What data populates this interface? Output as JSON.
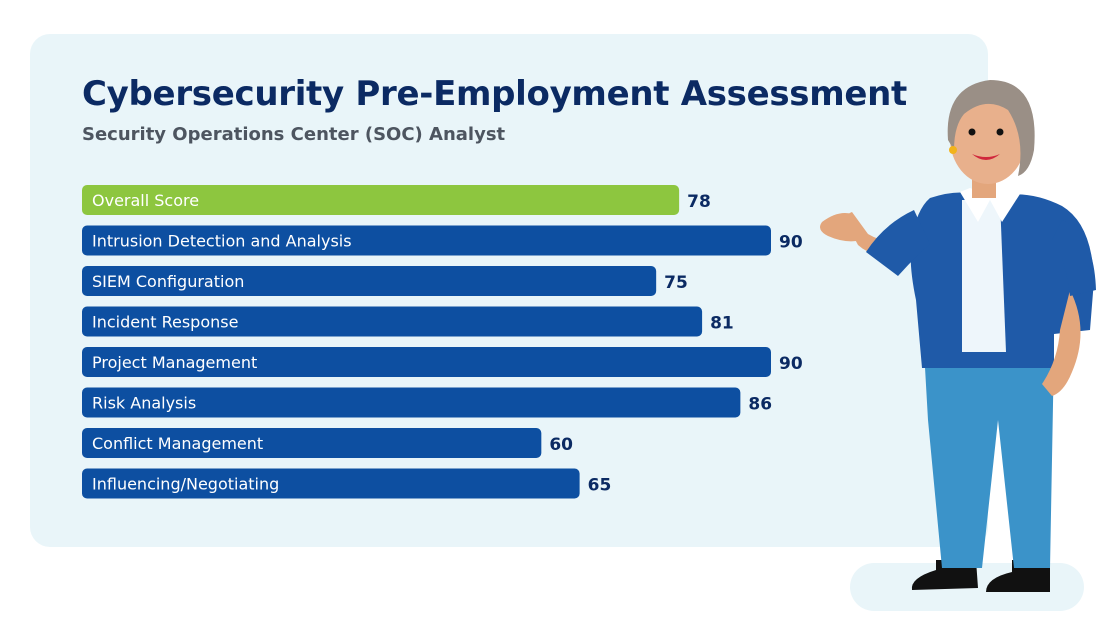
{
  "colors": {
    "card": "#e9f5f9",
    "highlight_bar": "#8dc63f",
    "bar": "#0d4fa1",
    "title": "#0b2a63",
    "subtitle": "#4d5560"
  },
  "chart_data": {
    "type": "bar",
    "orientation": "horizontal",
    "title": "Cybersecurity Pre-Employment Assessment",
    "subtitle": "Security Operations Center (SOC) Analyst",
    "categories": [
      "Overall Score",
      "Intrusion Detection and Analysis",
      "SIEM Configuration",
      "Incident Response",
      "Project Management",
      "Risk Analysis",
      "Conflict Management",
      "Influencing/Negotiating"
    ],
    "values": [
      78,
      90,
      75,
      81,
      90,
      86,
      60,
      65
    ],
    "highlight_index": 0,
    "xlim": [
      0,
      100
    ],
    "grid": false,
    "legend": "none"
  },
  "illustration": {
    "icon": "presenter-woman-icon"
  }
}
